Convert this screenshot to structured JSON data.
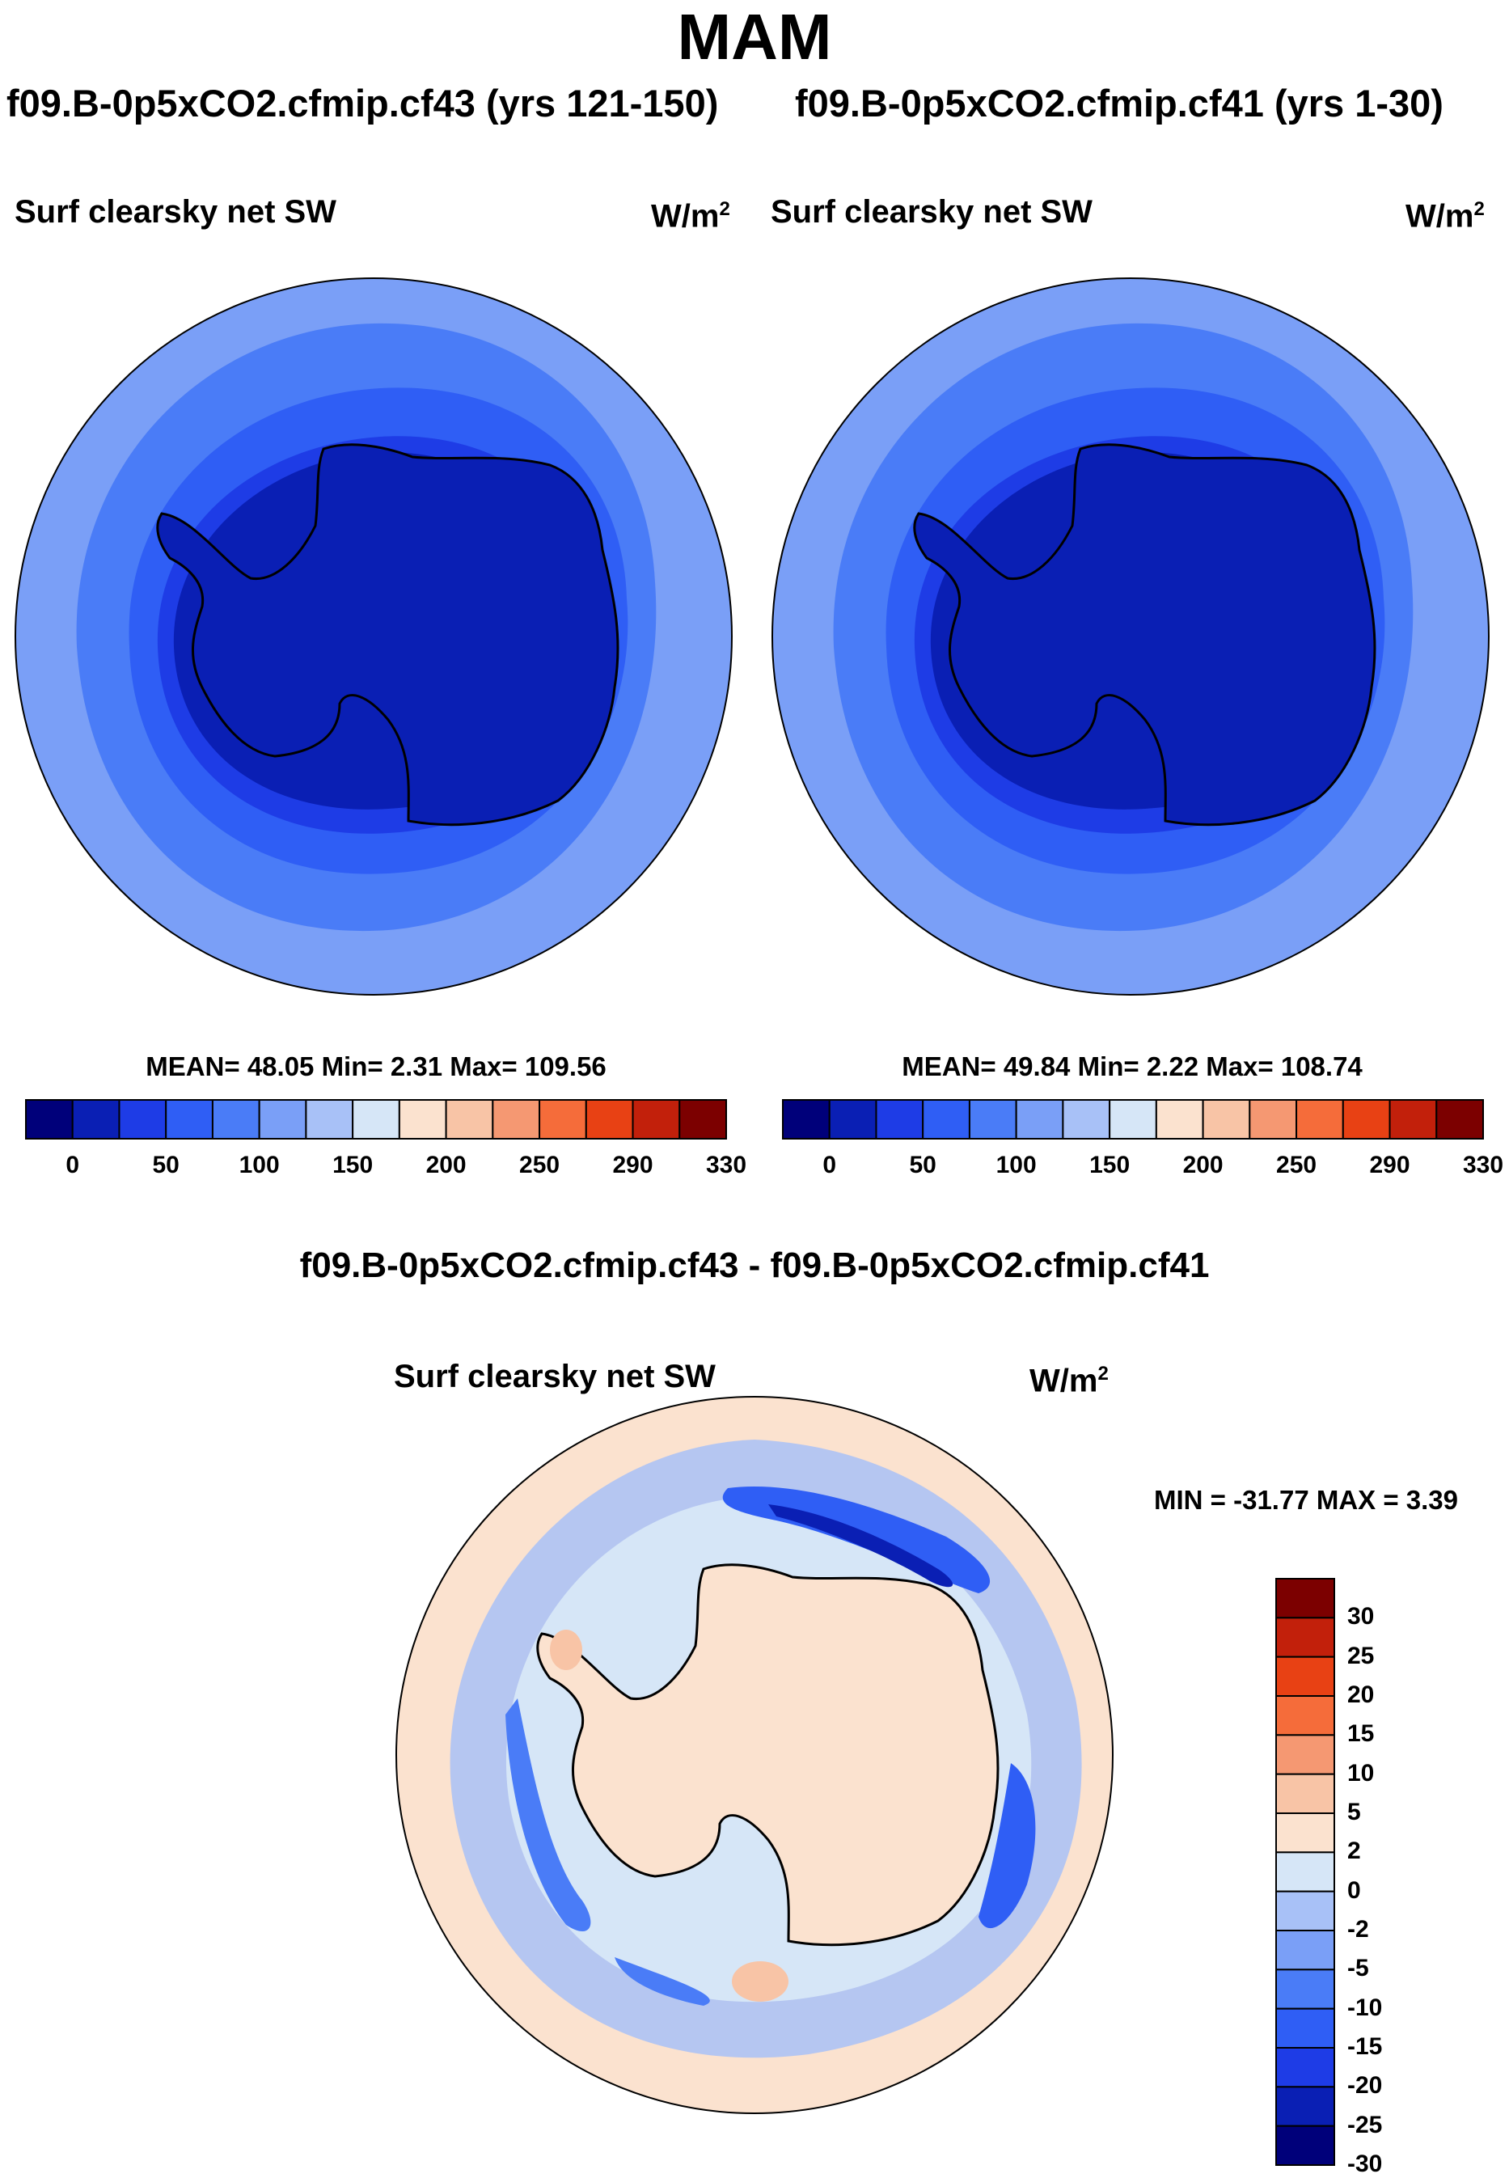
{
  "title": "MAM",
  "panels": [
    {
      "case_title": "f09.B-0p5xCO2.cfmip.cf43 (yrs 121-150)",
      "variable": "Surf clearsky net SW",
      "units": "W/m",
      "units_sup": "2",
      "stats": "MEAN=  48.05  Min=   2.31  Max= 109.56"
    },
    {
      "case_title": "f09.B-0p5xCO2.cfmip.cf41 (yrs 1-30)",
      "variable": "Surf clearsky net SW",
      "units": "W/m",
      "units_sup": "2",
      "stats": "MEAN=  49.84  Min=   2.22  Max= 108.74"
    }
  ],
  "diff": {
    "title": "f09.B-0p5xCO2.cfmip.cf43 - f09.B-0p5xCO2.cfmip.cf41",
    "variable": "Surf clearsky net SW",
    "units": "W/m",
    "units_sup": "2",
    "minmax": "MIN = -31.77 MAX =   3.39"
  },
  "colorbar_top": {
    "colors": [
      "#00007a",
      "#0a1fb4",
      "#1e3ce6",
      "#2f5ef5",
      "#4a7cf7",
      "#7a9ff7",
      "#a8c1f7",
      "#d6e6f7",
      "#fbe2cf",
      "#f8c4a6",
      "#f59872",
      "#f56c3a",
      "#e84114",
      "#c2200b",
      "#7c0000"
    ],
    "labels": [
      "0",
      "50",
      "100",
      "150",
      "200",
      "250",
      "290",
      "330"
    ]
  },
  "colorbar_diff": {
    "colors": [
      "#7c0000",
      "#c2200b",
      "#e84114",
      "#f56c3a",
      "#f59872",
      "#f8c4a6",
      "#fbe2cf",
      "#d6e6f7",
      "#a8c1f7",
      "#7a9ff7",
      "#4a7cf7",
      "#2f5ef5",
      "#1e3ce6",
      "#0a1fb4",
      "#00007a"
    ],
    "labels": [
      "30",
      "25",
      "20",
      "15",
      "10",
      "5",
      "2",
      "0",
      "-2",
      "-5",
      "-10",
      "-15",
      "-20",
      "-25",
      "-30"
    ]
  },
  "map_colors": {
    "ocean_ring_outer": "#7a9ff7",
    "ocean_ring_2": "#4a7cf7",
    "ocean_ring_3": "#2f5ef5",
    "ocean_ring_4": "#1e3ce6",
    "ocean_ring_5": "#0a1fb4",
    "continent": "#0a1fb4",
    "diff_background": "#fbe2cf",
    "diff_light": "#d6e6f7",
    "diff_mid": "#a8c1f7",
    "diff_strong": "#4a7cf7",
    "diff_deep": "#1e3ce6"
  }
}
